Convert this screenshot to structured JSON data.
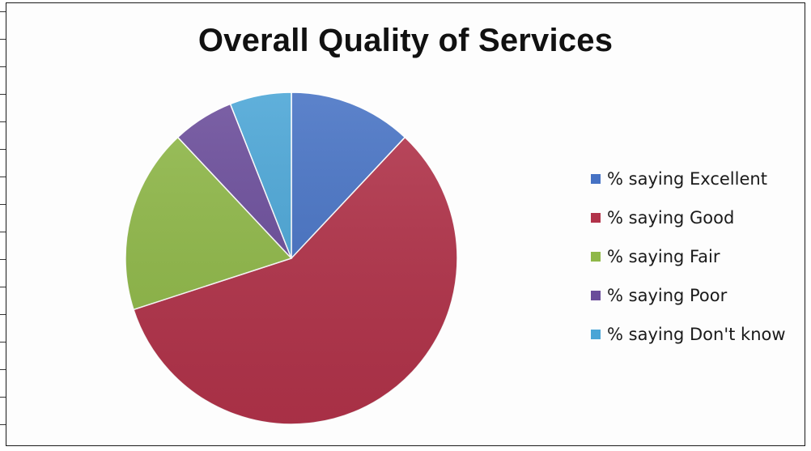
{
  "chart_data": {
    "type": "pie",
    "title": "Overall Quality of Services",
    "legend_position": "right",
    "slices": [
      {
        "label": "% saying Excellent",
        "value": 12,
        "color": "#4672c4"
      },
      {
        "label": "% saying Good",
        "value": 58,
        "color": "#b2334a"
      },
      {
        "label": "% saying Fair",
        "value": 18,
        "color": "#8fb848"
      },
      {
        "label": "% saying Poor",
        "value": 6,
        "color": "#6a4c9a"
      },
      {
        "label": "% saying Don't know",
        "value": 6,
        "color": "#4aa5d6"
      }
    ]
  }
}
